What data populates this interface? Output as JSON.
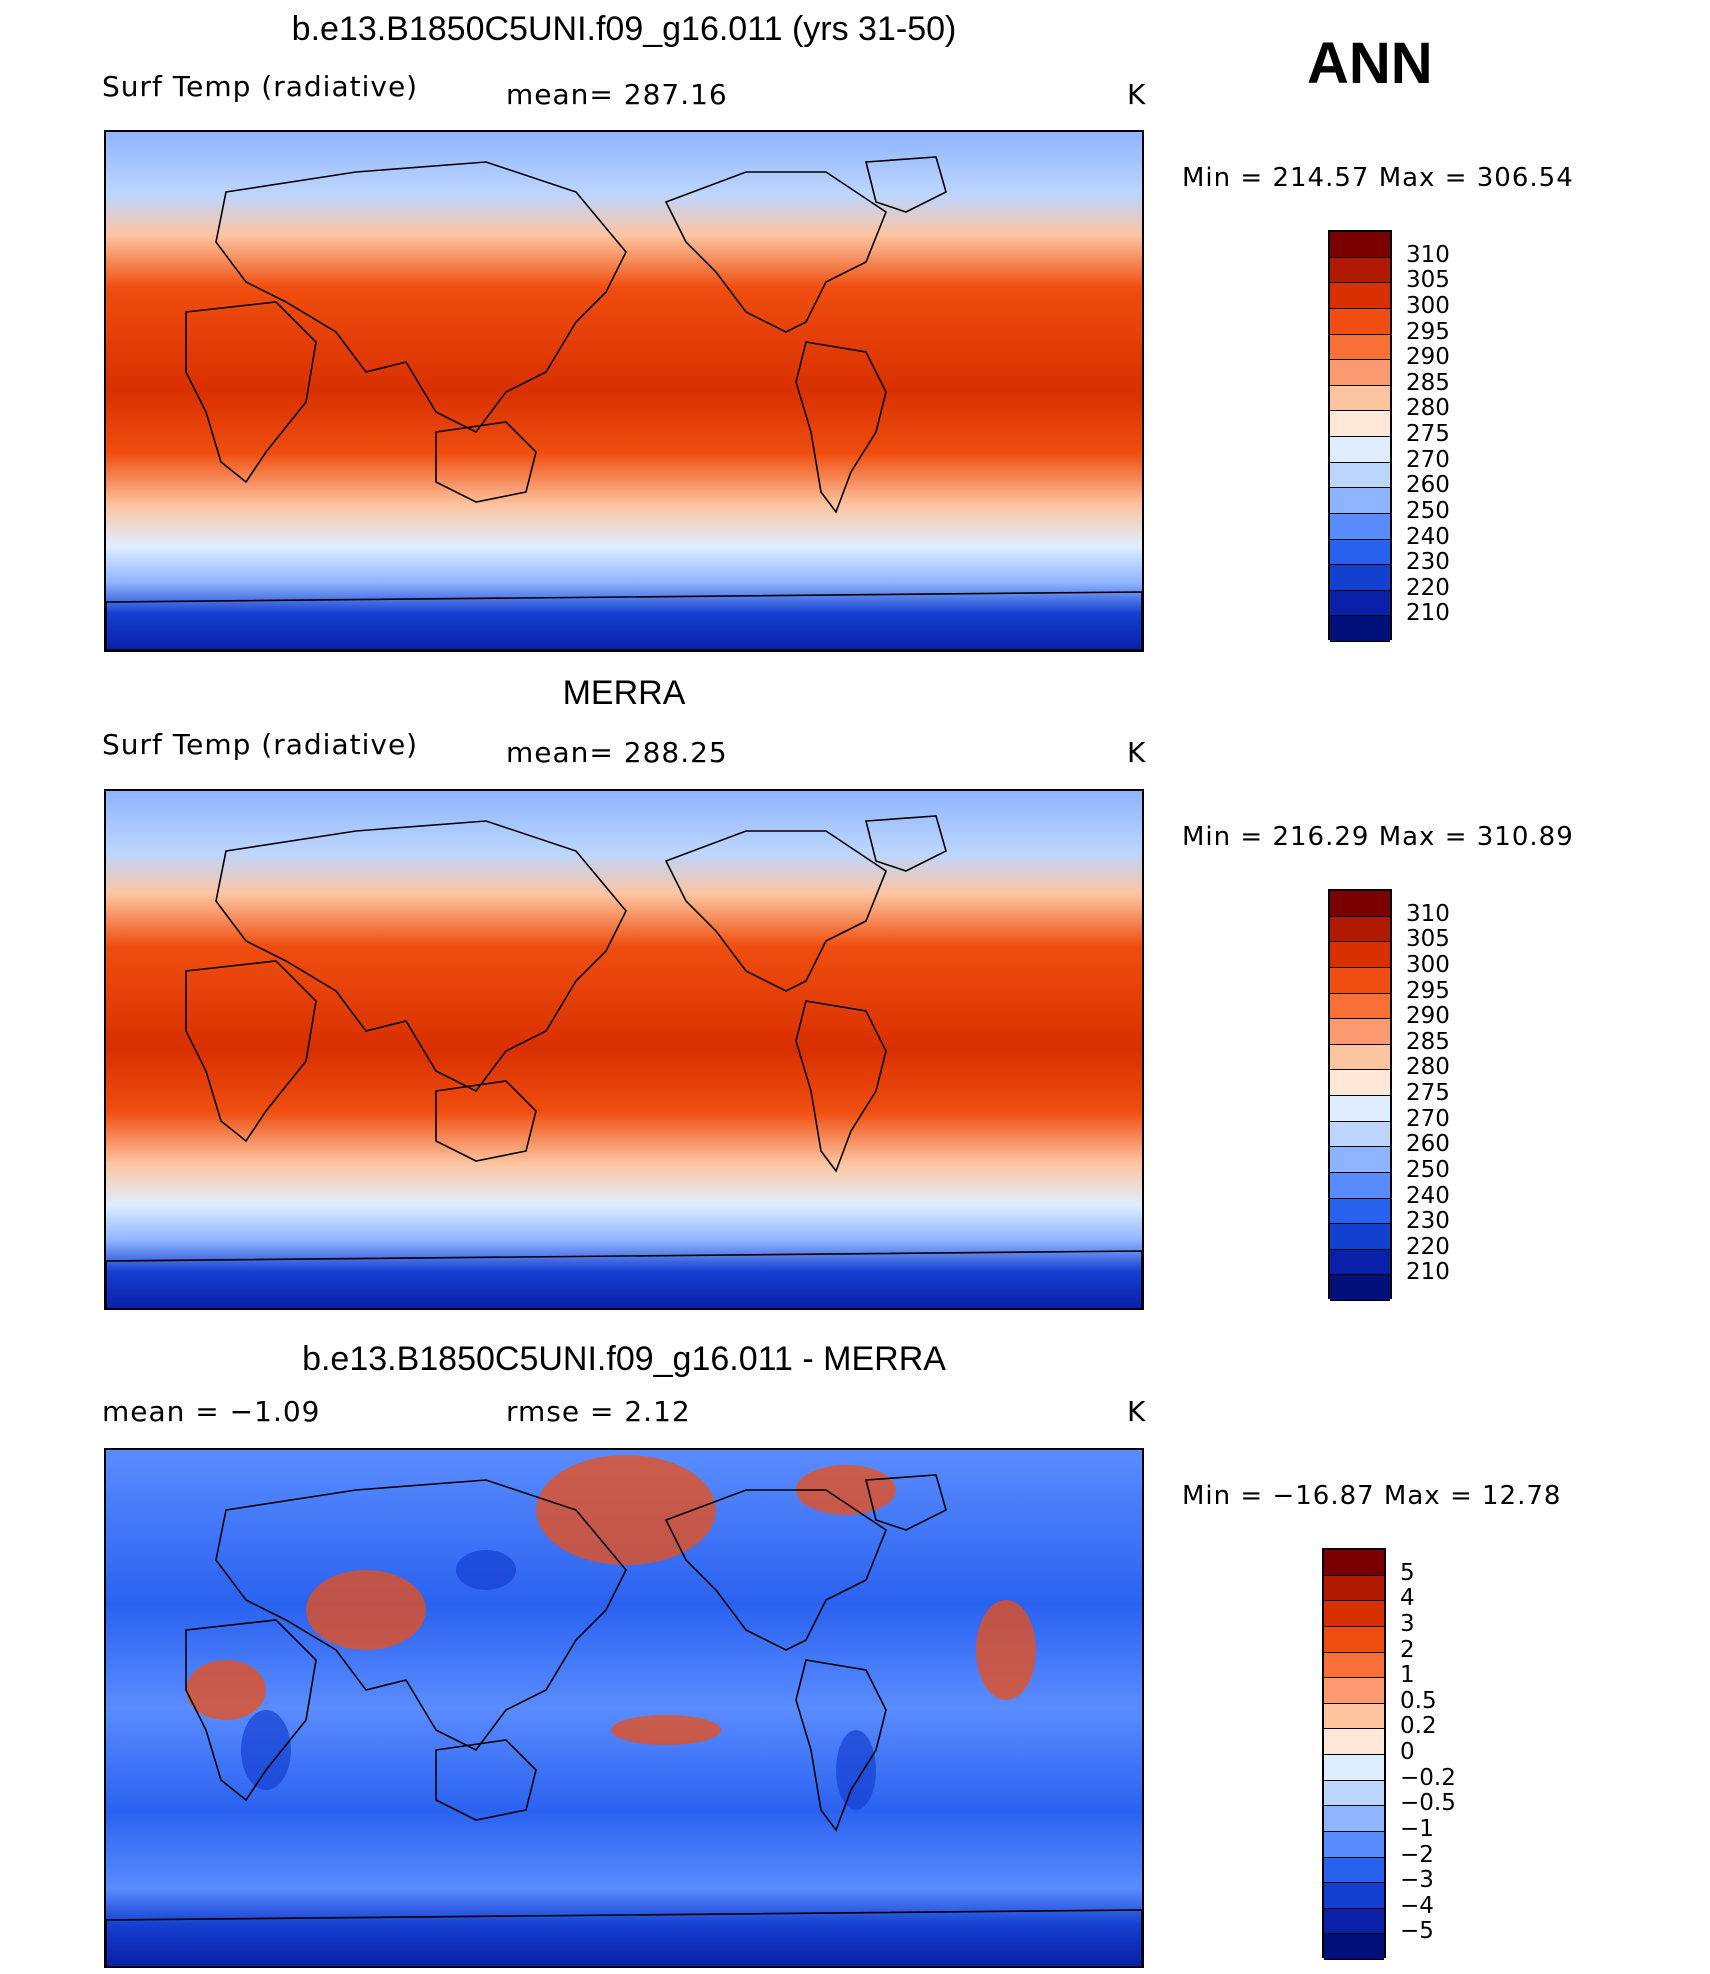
{
  "season": "ANN",
  "panels": [
    {
      "title": "b.e13.B1850C5UNI.f09_g16.011 (yrs 31-50)",
      "left_text": "Surf Temp (radiative)",
      "mid_text": "mean= 287.16",
      "units": "K",
      "minmax": "Min = 214.57  Max = 306.54",
      "colorbar_labels": [
        "310",
        "305",
        "300",
        "295",
        "290",
        "285",
        "280",
        "275",
        "270",
        "260",
        "250",
        "240",
        "230",
        "220",
        "210"
      ]
    },
    {
      "title": "MERRA",
      "left_text": "Surf Temp (radiative)",
      "mid_text": "mean= 288.25",
      "units": "K",
      "minmax": "Min = 216.29  Max = 310.89",
      "colorbar_labels": [
        "310",
        "305",
        "300",
        "295",
        "290",
        "285",
        "280",
        "275",
        "270",
        "260",
        "250",
        "240",
        "230",
        "220",
        "210"
      ]
    },
    {
      "title": "b.e13.B1850C5UNI.f09_g16.011 - MERRA",
      "left_text": "mean =   −1.09",
      "mid_text": "rmse =    2.12",
      "units": "K",
      "minmax": "Min = −16.87  Max =  12.78",
      "colorbar_labels": [
        "5",
        "4",
        "3",
        "2",
        "1",
        "0.5",
        "0.2",
        "0",
        "−0.2",
        "−0.5",
        "−1",
        "−2",
        "−3",
        "−4",
        "−5"
      ]
    }
  ],
  "colors": {
    "abs_palette": [
      "#7a0000",
      "#b01a00",
      "#d83000",
      "#f04e10",
      "#f87038",
      "#fb9a70",
      "#fdc4a0",
      "#ffe8d8",
      "#dfeeff",
      "#bcd6ff",
      "#8fb4ff",
      "#5a8cff",
      "#2a62f0",
      "#1440d0",
      "#0a20a8",
      "#00107a"
    ],
    "diff_palette": [
      "#7a0000",
      "#b01a00",
      "#d83000",
      "#f04e10",
      "#f87038",
      "#fb9a70",
      "#fdc4a0",
      "#ffe8d8",
      "#dfeeff",
      "#bcd6ff",
      "#8fb4ff",
      "#5a8cff",
      "#2a62f0",
      "#1440d0",
      "#0a20a8",
      "#00107a"
    ]
  }
}
